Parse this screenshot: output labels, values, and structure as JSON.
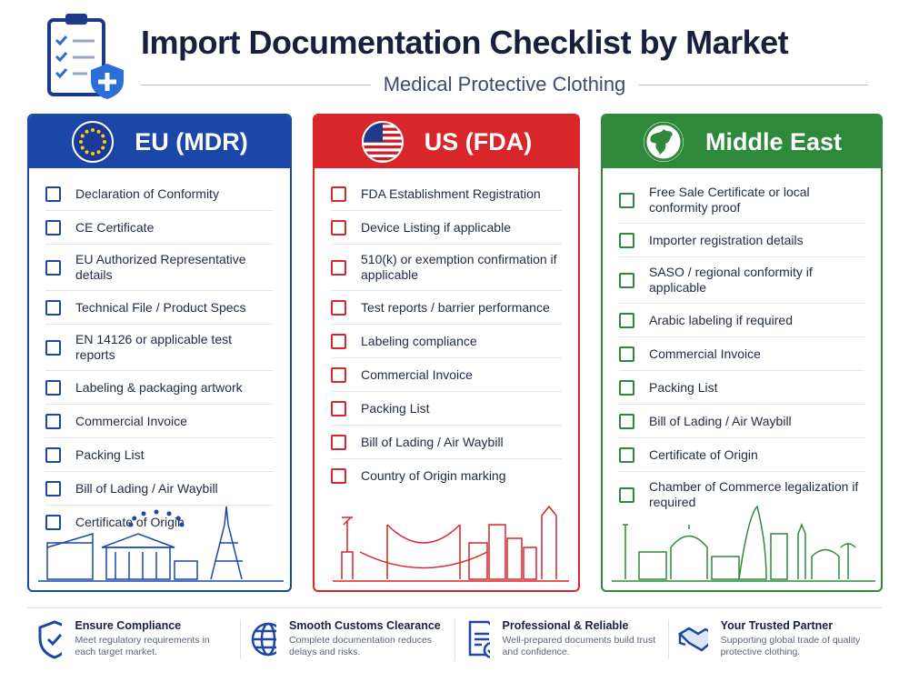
{
  "header": {
    "title": "Import Documentation Checklist by Market",
    "subtitle": "Medical Protective Clothing"
  },
  "columns": [
    {
      "title": "EU (MDR)",
      "items": [
        "Declaration of Conformity",
        "CE Certificate",
        "EU Authorized Representative details",
        "Technical File / Product Specs",
        "EN 14126 or applicable test reports",
        "Labeling & packaging artwork",
        "Commercial Invoice",
        "Packing List",
        "Bill of Lading / Air Waybill",
        "Certificate of Origin"
      ]
    },
    {
      "title": "US (FDA)",
      "items": [
        "FDA Establishment Registration",
        "Device Listing if applicable",
        "510(k) or exemption confirmation if applicable",
        "Test reports / barrier performance",
        "Labeling compliance",
        "Commercial Invoice",
        "Packing List",
        "Bill of Lading / Air Waybill",
        "Country of Origin marking"
      ]
    },
    {
      "title": "Middle East",
      "items": [
        "Free Sale Certificate or local conformity proof",
        "Importer registration details",
        "SASO / regional conformity if applicable",
        "Arabic labeling if required",
        "Commercial Invoice",
        "Packing List",
        "Bill of Lading / Air Waybill",
        "Certificate of Origin",
        "Chamber of Commerce legalization if required"
      ]
    }
  ],
  "footer": [
    {
      "title": "Ensure Compliance",
      "text": "Meet regulatory requirements in each target market."
    },
    {
      "title": "Smooth Customs Clearance",
      "text": "Complete documentation reduces delays and risks."
    },
    {
      "title": "Professional & Reliable",
      "text": "Well-prepared documents build trust and confidence."
    },
    {
      "title": "Your Trusted Partner",
      "text": "Supporting global trade of quality protective clothing."
    }
  ]
}
